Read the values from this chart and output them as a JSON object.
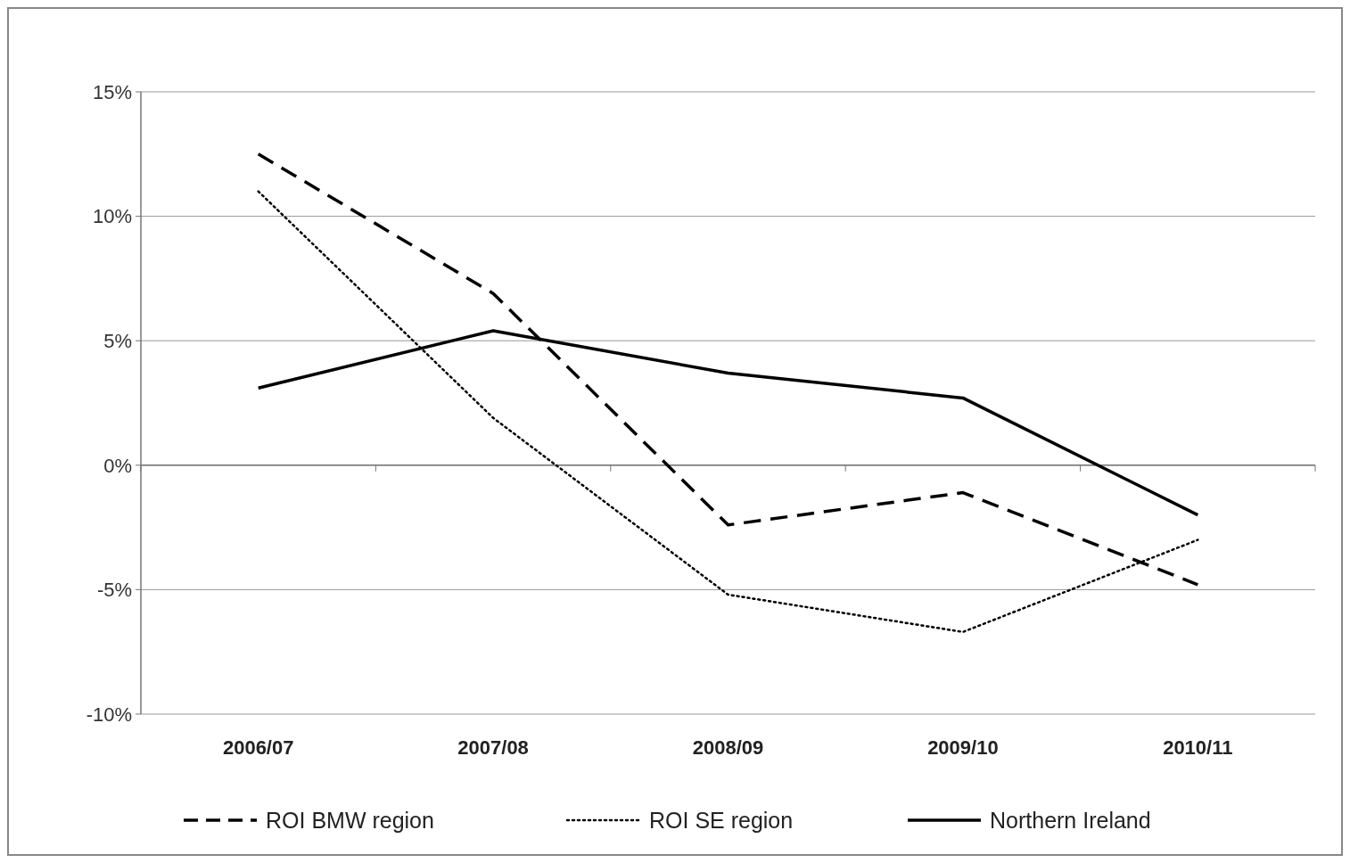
{
  "chart_data": {
    "type": "line",
    "categories": [
      "2006/07",
      "2007/08",
      "2008/09",
      "2009/10",
      "2010/11"
    ],
    "series": [
      {
        "name": "ROI BMW region",
        "color": "#000000",
        "line_style": "dashed",
        "values": [
          12.5,
          6.9,
          -2.4,
          -1.1,
          -4.8
        ]
      },
      {
        "name": "ROI SE region",
        "color": "#000000",
        "line_style": "dotted",
        "values": [
          11.0,
          1.9,
          -5.2,
          -6.7,
          -3.0
        ]
      },
      {
        "name": "Northern Ireland",
        "color": "#000000",
        "line_style": "solid",
        "values": [
          3.1,
          5.4,
          3.7,
          2.7,
          -2.0
        ]
      }
    ],
    "ylim": [
      -10,
      15
    ],
    "yticks": [
      {
        "value": -10,
        "label": "-10%"
      },
      {
        "value": -5,
        "label": "-5%"
      },
      {
        "value": 0,
        "label": "0%"
      },
      {
        "value": 5,
        "label": "5%"
      },
      {
        "value": 10,
        "label": "10%"
      },
      {
        "value": 15,
        "label": "15%"
      }
    ],
    "grid": "y",
    "legend": "bottom"
  }
}
